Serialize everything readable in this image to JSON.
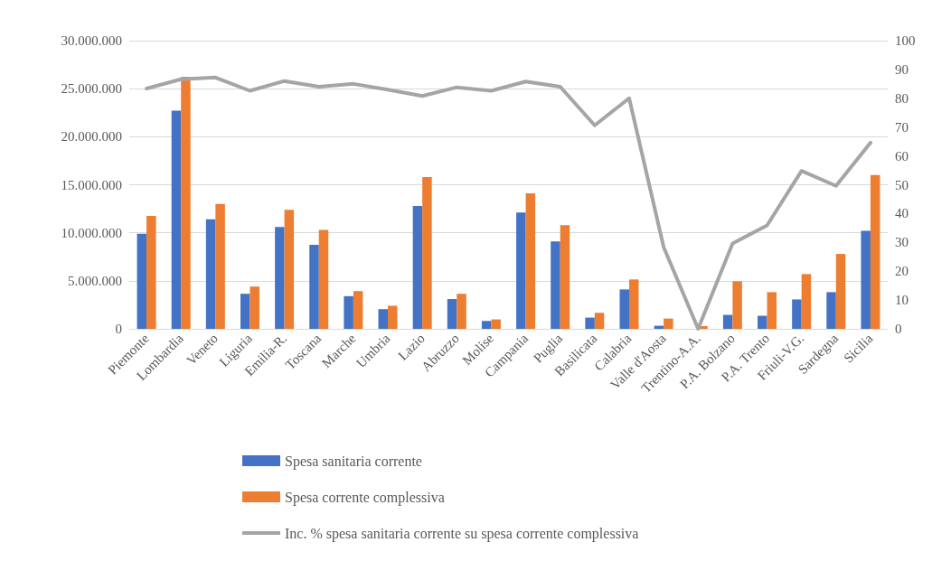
{
  "chart_data": {
    "type": "bar",
    "categories": [
      "Piemonte",
      "Lombardia",
      "Veneto",
      "Liguria",
      "Emilia-R.",
      "Toscana",
      "Marche",
      "Umbria",
      "Lazio",
      "Abruzzo",
      "Molise",
      "Campania",
      "Puglia",
      "Basilicata",
      "Calabria",
      "Valle d'Aosta",
      "Trentino-A.A.",
      "P.A. Bolzano",
      "P.A. Trento",
      "Friuli-V.G.",
      "Sardegna",
      "Sicilia"
    ],
    "series": [
      {
        "name": "Spesa sanitaria corrente",
        "color": "#4472c4",
        "values": [
          9900000,
          22700000,
          11400000,
          3650000,
          10600000,
          8750000,
          3400000,
          2050000,
          12800000,
          3100000,
          820000,
          12100000,
          9100000,
          1170000,
          4100000,
          320000,
          0,
          1450000,
          1360000,
          3060000,
          3820000,
          10200000
        ]
      },
      {
        "name": "Spesa corrente complessiva",
        "color": "#ed7d31",
        "values": [
          11750000,
          26250000,
          13000000,
          4400000,
          12400000,
          10300000,
          3930000,
          2400000,
          15800000,
          3650000,
          980000,
          14100000,
          10800000,
          1670000,
          5140000,
          1070000,
          280000,
          4950000,
          3820000,
          5700000,
          7800000,
          16000000
        ]
      },
      {
        "name": "Inc. % spesa sanitaria corrente su spesa corrente complessiva",
        "type": "line",
        "axis": "y2",
        "color": "#a5a5a5",
        "values": [
          83.4,
          86.6,
          87.2,
          82.6,
          86,
          84,
          85,
          83,
          80.8,
          83.8,
          82.6,
          85.8,
          84,
          70.6,
          80,
          28.4,
          0,
          29.6,
          35.9,
          54.8,
          49.6,
          64.6
        ]
      }
    ],
    "ylim": [
      0,
      30000000
    ],
    "yticks": [
      {
        "value": 0,
        "label": "0"
      },
      {
        "value": 5000000,
        "label": "5.000.000"
      },
      {
        "value": 10000000,
        "label": "10.000.000"
      },
      {
        "value": 15000000,
        "label": "15.000.000"
      },
      {
        "value": 20000000,
        "label": "20.000.000"
      },
      {
        "value": 25000000,
        "label": "25.000.000"
      },
      {
        "value": 30000000,
        "label": "30.000.000"
      }
    ],
    "y2lim": [
      0,
      100
    ],
    "y2ticks": [
      0,
      10,
      20,
      30,
      40,
      50,
      60,
      70,
      80,
      90,
      100
    ],
    "grid": "y",
    "legend": "bottom",
    "marker": "none"
  }
}
